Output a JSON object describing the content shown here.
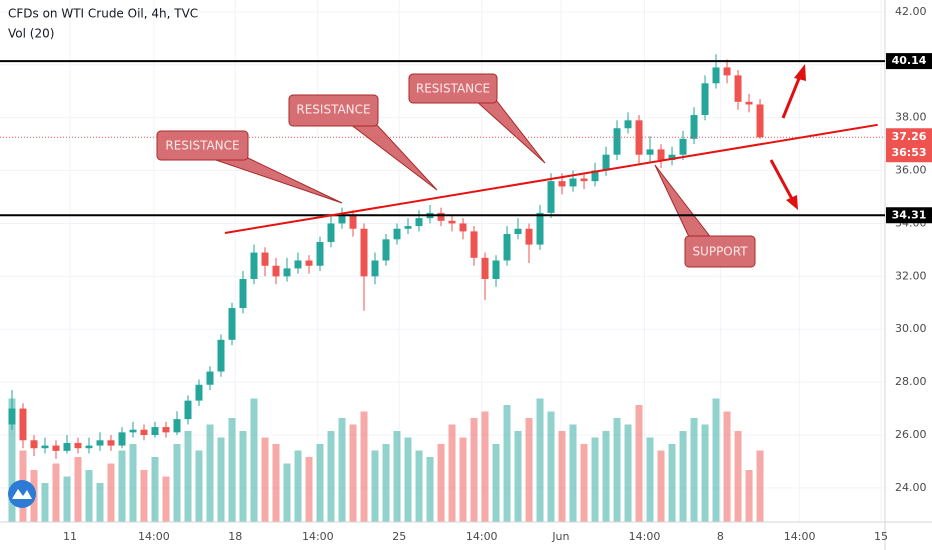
{
  "chart_data": {
    "type": "candlestick",
    "title": "CFDs on WTI Crude Oil, 4h, TVC",
    "subtitle": "Vol (20)",
    "open": [
      26.4,
      27.0,
      25.8,
      25.5,
      25.6,
      25.4,
      25.7,
      25.5,
      25.6,
      25.8,
      25.6,
      26.1,
      26.2,
      26.0,
      26.3,
      26.1,
      26.6,
      27.3,
      27.9,
      28.4,
      29.6,
      30.8,
      31.9,
      32.9,
      32.4,
      32.0,
      32.3,
      32.6,
      32.4,
      33.3,
      34.0,
      34.3,
      33.8,
      32.0,
      32.6,
      33.4,
      33.8,
      33.9,
      34.2,
      34.4,
      34.1,
      34.0,
      33.7,
      32.7,
      31.9,
      32.6,
      33.6,
      33.8,
      33.2,
      34.4,
      35.6,
      35.4,
      35.7,
      35.6,
      36.0,
      36.6,
      37.6,
      37.9,
      36.6,
      36.8,
      36.4,
      36.6,
      37.2,
      38.1,
      39.3,
      39.9,
      39.6,
      38.6,
      38.5
    ],
    "high": [
      27.7,
      27.2,
      26.0,
      25.9,
      25.8,
      26.0,
      25.9,
      25.9,
      26.1,
      26.0,
      26.3,
      26.5,
      26.4,
      26.5,
      26.5,
      26.9,
      27.5,
      28.1,
      28.6,
      29.8,
      31.0,
      32.2,
      33.2,
      33.1,
      32.7,
      32.7,
      32.9,
      32.8,
      33.5,
      34.3,
      34.6,
      34.5,
      34.0,
      32.9,
      33.6,
      34.0,
      34.2,
      34.5,
      34.7,
      34.6,
      34.3,
      34.2,
      33.9,
      32.9,
      32.8,
      33.9,
      34.2,
      34.0,
      34.7,
      35.9,
      35.9,
      36.0,
      35.9,
      36.3,
      36.9,
      37.9,
      38.2,
      38.1,
      37.3,
      37.0,
      36.9,
      37.5,
      38.4,
      39.6,
      40.4,
      40.2,
      39.8,
      38.9,
      38.7
    ],
    "low": [
      26.2,
      25.5,
      25.2,
      25.3,
      25.1,
      25.3,
      25.3,
      25.3,
      25.4,
      25.4,
      25.5,
      25.9,
      25.8,
      25.9,
      25.9,
      26.0,
      26.4,
      27.1,
      27.7,
      28.2,
      29.4,
      30.6,
      31.7,
      32.0,
      31.7,
      31.8,
      32.1,
      32.1,
      32.2,
      33.1,
      33.8,
      33.5,
      30.7,
      31.7,
      32.4,
      33.2,
      33.6,
      33.7,
      34.0,
      33.9,
      33.7,
      33.4,
      32.4,
      31.1,
      31.6,
      32.4,
      33.4,
      32.5,
      33.0,
      34.2,
      35.1,
      35.2,
      35.3,
      35.4,
      35.8,
      36.4,
      37.4,
      36.2,
      36.3,
      36.1,
      36.2,
      36.4,
      37.0,
      37.9,
      39.1,
      39.3,
      38.3,
      38.2,
      37.2
    ],
    "close": [
      27.0,
      25.8,
      25.5,
      25.6,
      25.4,
      25.7,
      25.5,
      25.6,
      25.8,
      25.6,
      26.1,
      26.2,
      26.0,
      26.3,
      26.1,
      26.6,
      27.3,
      27.9,
      28.4,
      29.6,
      30.8,
      31.9,
      32.9,
      32.4,
      32.0,
      32.3,
      32.6,
      32.4,
      33.3,
      34.0,
      34.3,
      33.8,
      32.0,
      32.6,
      33.4,
      33.8,
      33.9,
      34.2,
      34.4,
      34.1,
      34.0,
      33.7,
      32.7,
      31.9,
      32.6,
      33.6,
      33.8,
      33.2,
      34.4,
      35.6,
      35.4,
      35.7,
      35.6,
      36.0,
      36.6,
      37.6,
      37.9,
      36.6,
      36.8,
      36.4,
      36.6,
      37.2,
      38.1,
      39.3,
      39.9,
      39.6,
      38.6,
      38.5,
      37.26
    ],
    "volume": [
      95,
      55,
      40,
      30,
      45,
      35,
      50,
      40,
      30,
      45,
      55,
      60,
      40,
      50,
      35,
      60,
      70,
      55,
      75,
      65,
      80,
      70,
      95,
      65,
      60,
      45,
      55,
      50,
      60,
      70,
      80,
      75,
      85,
      55,
      60,
      70,
      65,
      55,
      50,
      60,
      75,
      65,
      80,
      85,
      60,
      90,
      70,
      80,
      95,
      85,
      70,
      75,
      60,
      65,
      70,
      80,
      75,
      90,
      65,
      55,
      60,
      70,
      80,
      75,
      95,
      85,
      70,
      40,
      55
    ],
    "vlim": [
      0,
      100
    ],
    "up_color": "#26a69a",
    "down_color": "#ef5350",
    "xlim": [
      -1.09,
      79.36
    ],
    "xticks": [
      {
        "value": 5.27,
        "label": "11"
      },
      {
        "value": 12.9,
        "label": "14:00"
      },
      {
        "value": 20.3,
        "label": "18"
      },
      {
        "value": 27.8,
        "label": "14:00"
      },
      {
        "value": 35.2,
        "label": "25"
      },
      {
        "value": 42.7,
        "label": "14:00"
      },
      {
        "value": 49.9,
        "label": "Jun"
      },
      {
        "value": 57.5,
        "label": "14:00"
      },
      {
        "value": 64.4,
        "label": "8"
      },
      {
        "value": 71.6,
        "label": "14:00"
      },
      {
        "value": 79.0,
        "label": "15"
      }
    ],
    "ylim": [
      22.71,
      42.45
    ],
    "yticks": [
      {
        "value": 24,
        "label": "24.00"
      },
      {
        "value": 26,
        "label": "26.00"
      },
      {
        "value": 28,
        "label": "28.00"
      },
      {
        "value": 30,
        "label": "30.00"
      },
      {
        "value": 32,
        "label": "32.00"
      },
      {
        "value": 34,
        "label": "34.00"
      },
      {
        "value": 36,
        "label": "36.00"
      },
      {
        "value": 38,
        "label": "38.00"
      },
      {
        "value": 40,
        "label": "40.00"
      },
      {
        "value": 42,
        "label": "42.00"
      }
    ],
    "grid": true,
    "hlines": [
      {
        "value": 40.14,
        "label": "40.14"
      },
      {
        "value": 34.31,
        "label": "34.31"
      }
    ],
    "last_price": {
      "value": 37.26,
      "label": "37.26"
    },
    "countdown": "36:53",
    "trend": {
      "x": [
        19.36,
        78.7
      ],
      "y": [
        33.64,
        37.73
      ]
    },
    "annotations": [
      "RESISTANCE",
      "RESISTANCE",
      "RESISTANCE",
      "SUPPORT"
    ]
  }
}
